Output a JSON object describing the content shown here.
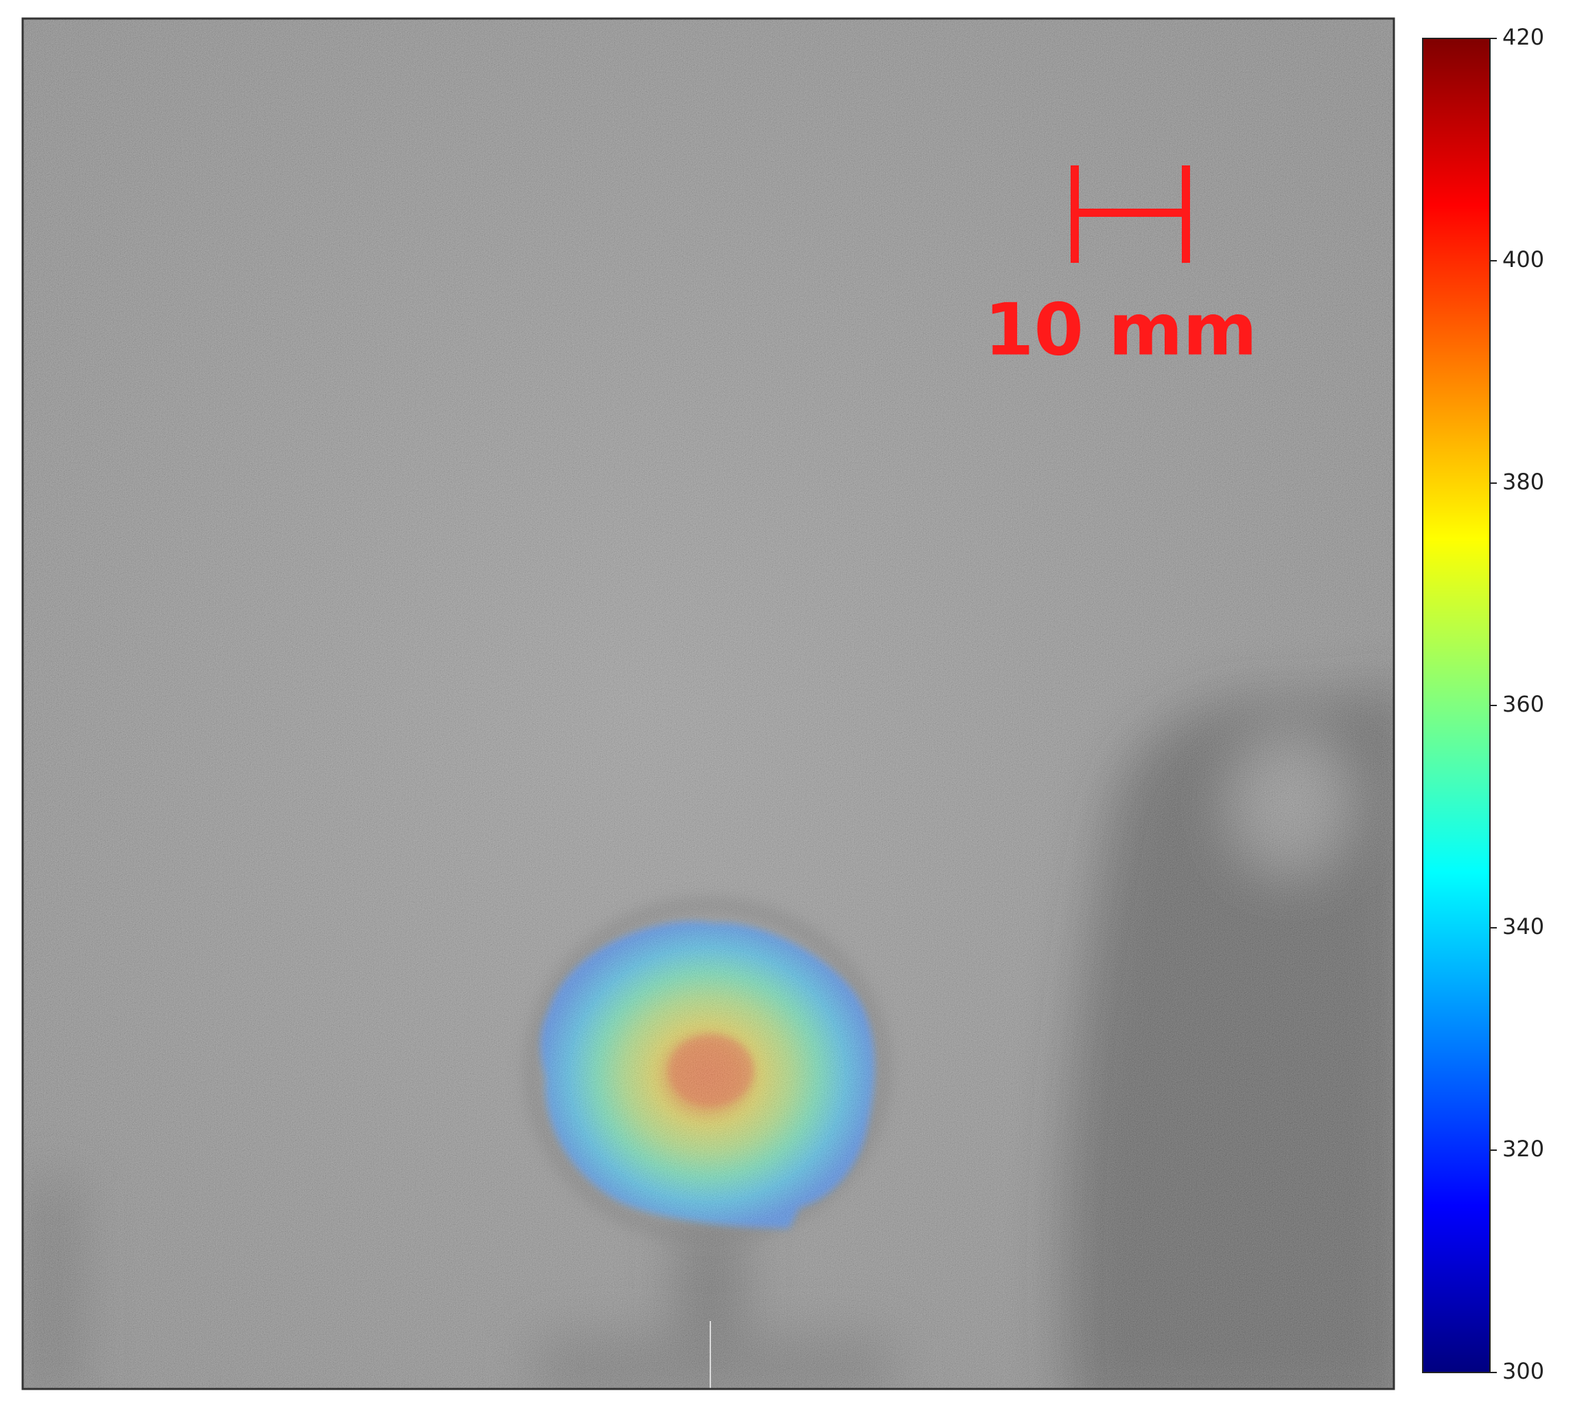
{
  "chart_data": {
    "type": "image",
    "colorbar": {
      "colormap": "jet",
      "lim": [
        300,
        420
      ],
      "ticks": [
        300,
        320,
        340,
        360,
        380,
        400,
        420
      ]
    },
    "scale_bar": {
      "label": "10 mm",
      "color": "#ff1a1a"
    }
  }
}
